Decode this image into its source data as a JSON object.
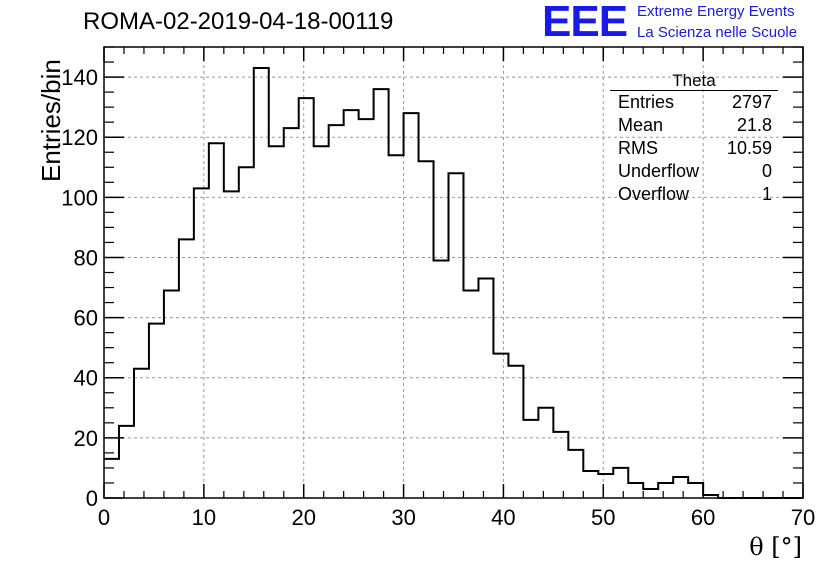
{
  "title": "ROMA-02-2019-04-18-00119",
  "logo": {
    "text": "EEE",
    "line1": "Extreme Energy Events",
    "line2": "La Scienza nelle Scuole",
    "color": "#1a1ae6"
  },
  "stats": {
    "name": "Theta",
    "rows": [
      {
        "label": "Entries",
        "value": "2797"
      },
      {
        "label": "Mean",
        "value": "21.8"
      },
      {
        "label": "RMS",
        "value": "10.59"
      },
      {
        "label": "Underflow",
        "value": "0"
      },
      {
        "label": "Overflow",
        "value": "1"
      }
    ]
  },
  "chart_data": {
    "type": "bar",
    "title": "ROMA-02-2019-04-18-00119",
    "xlabel": "θ [°]",
    "ylabel": "Entries/bin",
    "xlim": [
      0,
      70
    ],
    "ylim": [
      0,
      150
    ],
    "grid": true,
    "bin_width": 1.5,
    "x_ticks": [
      0,
      10,
      20,
      30,
      40,
      50,
      60,
      70
    ],
    "y_ticks": [
      0,
      20,
      40,
      60,
      80,
      100,
      120,
      140
    ],
    "values": [
      13,
      24,
      43,
      58,
      69,
      86,
      103,
      118,
      102,
      110,
      143,
      117,
      123,
      133,
      117,
      124,
      129,
      126,
      136,
      114,
      128,
      112,
      79,
      108,
      69,
      73,
      48,
      44,
      26,
      30,
      22,
      16,
      9,
      8,
      10,
      5,
      3,
      5,
      7,
      5,
      1,
      0,
      0,
      0,
      0,
      0,
      0
    ]
  }
}
